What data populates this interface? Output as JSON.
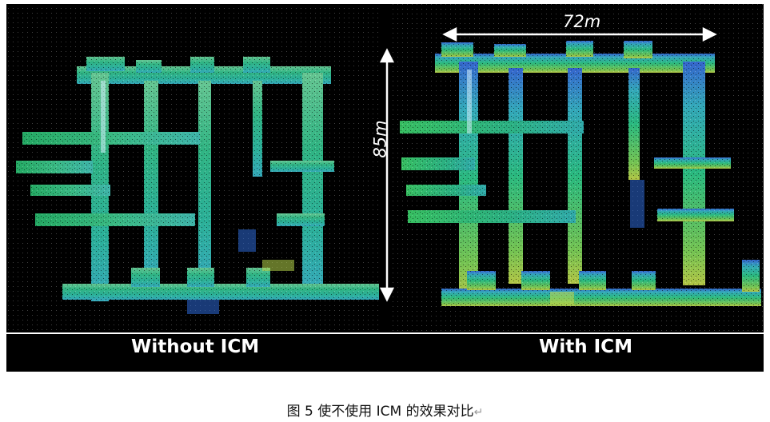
{
  "panels": {
    "left_label": "Without ICM",
    "right_label": "With ICM"
  },
  "dimensions": {
    "horizontal": "72m",
    "vertical": "85m"
  },
  "caption": {
    "text": "图 5 使不使用 ICM 的效果对比",
    "return_mark": "↵"
  },
  "colors": {
    "background": "#000000",
    "point_cloud_green": "#3fd08a",
    "point_cloud_cyan": "#38c8c8",
    "point_cloud_blue": "#3a7ee6",
    "point_cloud_yellow": "#b9d84a"
  }
}
